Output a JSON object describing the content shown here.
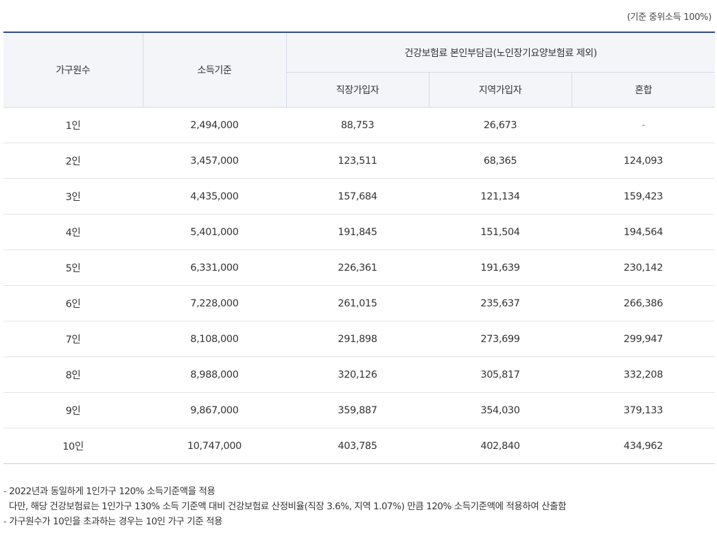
{
  "unit_note": "(기준 중위소득 100%)",
  "table": {
    "headers": {
      "household": "가구원수",
      "income": "소득기준",
      "premium_group": "건강보험료 본인부담금(노인장기요양보험료 제외)",
      "employee": "직장가입자",
      "regional": "지역가입자",
      "mixed": "혼합"
    },
    "rows": [
      {
        "household": "1인",
        "income": "2,494,000",
        "employee": "88,753",
        "regional": "26,673",
        "mixed": "-"
      },
      {
        "household": "2인",
        "income": "3,457,000",
        "employee": "123,511",
        "regional": "68,365",
        "mixed": "124,093"
      },
      {
        "household": "3인",
        "income": "4,435,000",
        "employee": "157,684",
        "regional": "121,134",
        "mixed": "159,423"
      },
      {
        "household": "4인",
        "income": "5,401,000",
        "employee": "191,845",
        "regional": "151,504",
        "mixed": "194,564"
      },
      {
        "household": "5인",
        "income": "6,331,000",
        "employee": "226,361",
        "regional": "191,639",
        "mixed": "230,142"
      },
      {
        "household": "6인",
        "income": "7,228,000",
        "employee": "261,015",
        "regional": "235,637",
        "mixed": "266,386"
      },
      {
        "household": "7인",
        "income": "8,108,000",
        "employee": "291,898",
        "regional": "273,699",
        "mixed": "299,947"
      },
      {
        "household": "8인",
        "income": "8,988,000",
        "employee": "320,126",
        "regional": "305,817",
        "mixed": "332,208"
      },
      {
        "household": "9인",
        "income": "9,867,000",
        "employee": "359,887",
        "regional": "354,030",
        "mixed": "379,133"
      },
      {
        "household": "10인",
        "income": "10,747,000",
        "employee": "403,785",
        "regional": "402,840",
        "mixed": "434,962"
      }
    ]
  },
  "notes": {
    "dash": "-",
    "line1": "2022년과 동일하게 1인가구 120% 소득기준액을 적용",
    "line2": "다만, 해당 건강보험료는 1인가구 130% 소득 기준액 대비 건강보험료 산정비율(직장 3.6%, 지역 1.07%) 만큼 120% 소득기준액에 적용하여 산출함",
    "line3": "가구원수가 10인을 초과하는 경우는 10인 가구 기준 적용"
  }
}
